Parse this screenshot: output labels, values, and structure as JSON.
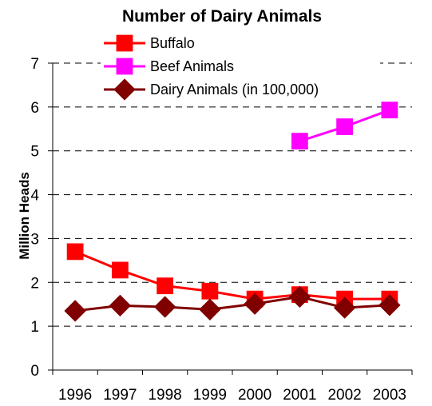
{
  "chart_data": {
    "type": "line",
    "title": "Number of Dairy Animals",
    "xlabel": "",
    "ylabel": "Million Heads",
    "categories": [
      "1996",
      "1997",
      "1998",
      "1999",
      "2000",
      "2001",
      "2002",
      "2003"
    ],
    "ylim": [
      0,
      7
    ],
    "yticks": [
      "0",
      "1",
      "2",
      "3",
      "4",
      "5",
      "6",
      "7"
    ],
    "grid": true,
    "legend_position": "top",
    "series": [
      {
        "name": "Buffalo",
        "color": "#ff0000",
        "marker": "square",
        "values": [
          2.7,
          2.28,
          1.92,
          1.8,
          1.62,
          1.72,
          1.62,
          1.62
        ]
      },
      {
        "name": "Beef Animals",
        "color": "#ff00ff",
        "marker": "square",
        "values": [
          null,
          null,
          null,
          null,
          null,
          5.22,
          5.55,
          5.93
        ]
      },
      {
        "name": "Dairy Animals (in 100,000)",
        "color": "#800000",
        "marker": "diamond",
        "values": [
          1.35,
          1.47,
          1.44,
          1.38,
          1.51,
          1.67,
          1.42,
          1.48
        ]
      }
    ]
  }
}
